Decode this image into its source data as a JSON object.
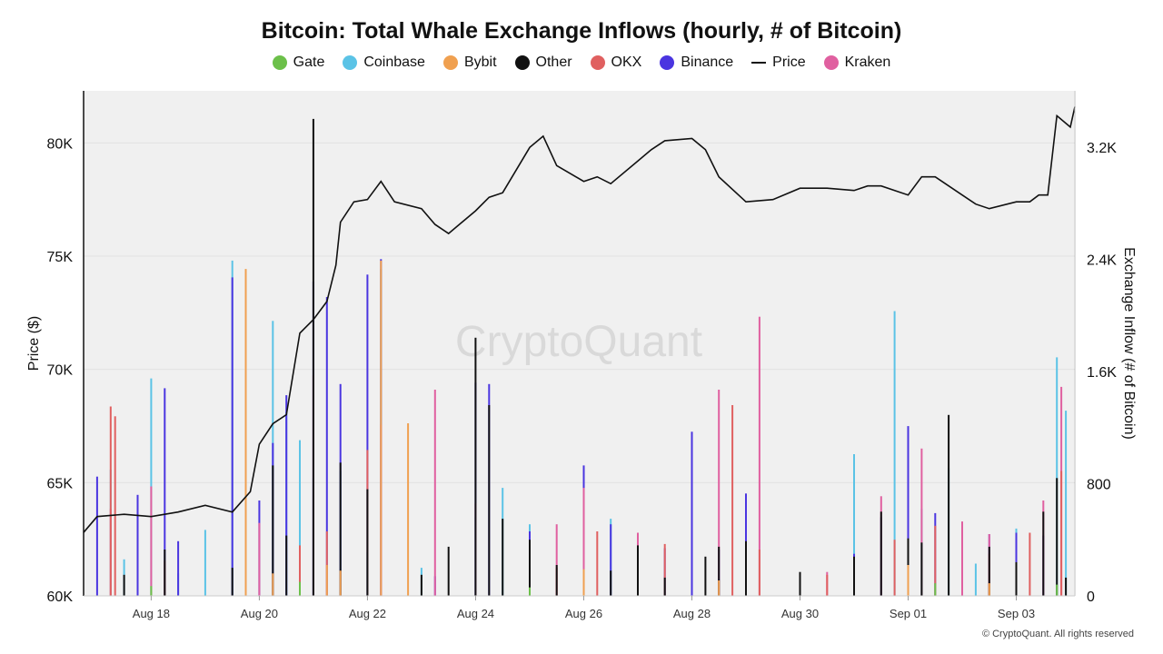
{
  "chart_data": {
    "type": "bar",
    "title": "Bitcoin: Total Whale Exchange Inflows (hourly, # of Bitcoin)",
    "ylabel_left": "Price ($)",
    "ylabel_right": "Exchange Inflow (# of Bitcoin)",
    "watermark": "CryptoQuant",
    "copyright": "© CryptoQuant. All rights reserved",
    "legend": [
      {
        "name": "Gate",
        "color": "#6cc04a",
        "marker": "dot"
      },
      {
        "name": "Coinbase",
        "color": "#5bc3e6",
        "marker": "dot"
      },
      {
        "name": "Bybit",
        "color": "#f0a050",
        "marker": "dot"
      },
      {
        "name": "Other",
        "color": "#111111",
        "marker": "dot"
      },
      {
        "name": "OKX",
        "color": "#e06060",
        "marker": "dot"
      },
      {
        "name": "Binance",
        "color": "#4a35e0",
        "marker": "dot"
      },
      {
        "name": "Price",
        "color": "#111111",
        "marker": "line"
      },
      {
        "name": "Kraken",
        "color": "#e060a0",
        "marker": "dot"
      }
    ],
    "x_ticks": [
      "Aug 18",
      "Aug 20",
      "Aug 22",
      "Aug 24",
      "Aug 26",
      "Aug 28",
      "Aug 30",
      "Sep 01",
      "Sep 03"
    ],
    "x_range": [
      "Aug 16 18:00",
      "Sep 04 02:00"
    ],
    "y_left": {
      "ticks": [
        "60K",
        "65K",
        "70K",
        "75K",
        "80K"
      ],
      "lim": [
        60000,
        82300
      ]
    },
    "y_right": {
      "ticks": [
        "0",
        "800",
        "1.6K",
        "2.4K",
        "3.2K"
      ],
      "lim": [
        0,
        3600
      ]
    },
    "grid": true,
    "price_series": {
      "name": "Price",
      "x": [
        "Aug 16 18:00",
        "Aug 17 00:00",
        "Aug 17 12:00",
        "Aug 18 00:00",
        "Aug 18 12:00",
        "Aug 19 00:00",
        "Aug 19 12:00",
        "Aug 19 20:00",
        "Aug 20 00:00",
        "Aug 20 06:00",
        "Aug 20 12:00",
        "Aug 20 18:00",
        "Aug 21 00:00",
        "Aug 21 06:00",
        "Aug 21 10:00",
        "Aug 21 12:00",
        "Aug 21 18:00",
        "Aug 22 00:00",
        "Aug 22 06:00",
        "Aug 22 12:00",
        "Aug 23 00:00",
        "Aug 23 06:00",
        "Aug 23 12:00",
        "Aug 24 00:00",
        "Aug 24 06:00",
        "Aug 24 12:00",
        "Aug 25 00:00",
        "Aug 25 06:00",
        "Aug 25 12:00",
        "Aug 26 00:00",
        "Aug 26 06:00",
        "Aug 26 12:00",
        "Aug 27 00:00",
        "Aug 27 06:00",
        "Aug 27 12:00",
        "Aug 28 00:00",
        "Aug 28 06:00",
        "Aug 28 12:00",
        "Aug 29 00:00",
        "Aug 29 12:00",
        "Aug 30 00:00",
        "Aug 30 12:00",
        "Aug 31 00:00",
        "Aug 31 06:00",
        "Aug 31 12:00",
        "Sep 01 00:00",
        "Sep 01 06:00",
        "Sep 01 12:00",
        "Sep 02 00:00",
        "Sep 02 06:00",
        "Sep 02 12:00",
        "Sep 03 00:00",
        "Sep 03 06:00",
        "Sep 03 10:00",
        "Sep 03 14:00",
        "Sep 03 18:00",
        "Sep 04 00:00",
        "Sep 04 02:00"
      ],
      "y": [
        62800,
        63500,
        63600,
        63500,
        63700,
        64000,
        63700,
        64600,
        66700,
        67600,
        68000,
        71600,
        72200,
        73000,
        74600,
        76500,
        77400,
        77500,
        78300,
        77400,
        77100,
        76400,
        76000,
        77000,
        77600,
        77800,
        79800,
        80300,
        79000,
        78300,
        78500,
        78200,
        79200,
        79700,
        80100,
        80200,
        79700,
        78500,
        77400,
        77500,
        78000,
        78000,
        77900,
        78100,
        78100,
        77700,
        78500,
        78500,
        77700,
        77300,
        77100,
        77400,
        77400,
        77700,
        77700,
        81200,
        80700,
        81600
      ]
    },
    "series": [
      {
        "name": "Coinbase",
        "x": [
          "Aug 17 06:00",
          "Aug 17 12:00",
          "Aug 18 00:00",
          "Aug 18 12:00",
          "Aug 19 00:00",
          "Aug 19 12:00",
          "Aug 19 18:00",
          "Aug 20 06:00",
          "Aug 20 12:00",
          "Aug 20 18:00",
          "Aug 21 00:00",
          "Aug 21 12:00",
          "Aug 22 00:00",
          "Aug 22 06:00",
          "Aug 23 00:00",
          "Aug 24 00:00",
          "Aug 24 12:00",
          "Aug 25 00:00",
          "Aug 26 00:00",
          "Aug 26 12:00",
          "Aug 27 00:00",
          "Aug 28 00:00",
          "Aug 28 12:00",
          "Aug 29 00:00",
          "Aug 30 00:00",
          "Aug 31 00:00",
          "Aug 31 18:00",
          "Sep 01 06:00",
          "Sep 01 18:00",
          "Sep 02 06:00",
          "Sep 03 00:00",
          "Sep 03 18:00",
          "Sep 03 22:00"
        ],
        "y": [
          900,
          260,
          1550,
          160,
          470,
          2390,
          1130,
          1960,
          1310,
          1110,
          840,
          890,
          310,
          2330,
          200,
          560,
          770,
          510,
          170,
          550,
          250,
          360,
          120,
          580,
          70,
          1010,
          2030,
          620,
          910,
          230,
          480,
          1700,
          1320
        ]
      },
      {
        "name": "Binance",
        "x": [
          "Aug 17 00:00",
          "Aug 17 18:00",
          "Aug 18 06:00",
          "Aug 18 12:00",
          "Aug 19 12:00",
          "Aug 20 00:00",
          "Aug 20 06:00",
          "Aug 20 12:00",
          "Aug 21 00:00",
          "Aug 21 06:00",
          "Aug 21 12:00",
          "Aug 22 00:00",
          "Aug 22 06:00",
          "Aug 23 06:00",
          "Aug 24 00:00",
          "Aug 24 06:00",
          "Aug 25 00:00",
          "Aug 26 00:00",
          "Aug 26 12:00",
          "Aug 27 00:00",
          "Aug 27 12:00",
          "Aug 28 00:00",
          "Aug 28 12:00",
          "Aug 29 00:00",
          "Aug 30 00:00",
          "Aug 31 00:00",
          "Aug 31 12:00",
          "Sep 01 00:00",
          "Sep 01 12:00",
          "Sep 02 00:00",
          "Sep 02 12:00",
          "Sep 03 00:00",
          "Sep 03 12:00"
        ],
        "y": [
          850,
          720,
          1480,
          390,
          2270,
          680,
          1090,
          1430,
          2240,
          2130,
          1510,
          2290,
          2400,
          140,
          1520,
          1510,
          460,
          930,
          510,
          290,
          340,
          1170,
          330,
          730,
          60,
          300,
          560,
          1210,
          590,
          300,
          440,
          450,
          430
        ]
      },
      {
        "name": "Kraken",
        "x": [
          "Aug 17 06:00",
          "Aug 18 00:00",
          "Aug 20 00:00",
          "Aug 21 00:00",
          "Aug 22 06:00",
          "Aug 23 06:00",
          "Aug 24 00:00",
          "Aug 25 12:00",
          "Aug 26 00:00",
          "Aug 27 00:00",
          "Aug 28 12:00",
          "Aug 29 06:00",
          "Aug 30 12:00",
          "Aug 31 12:00",
          "Sep 01 06:00",
          "Sep 02 00:00",
          "Sep 02 12:00",
          "Sep 03 12:00",
          "Sep 03 20:00"
        ],
        "y": [
          620,
          780,
          520,
          1570,
          1220,
          1470,
          660,
          510,
          770,
          450,
          1470,
          1990,
          170,
          710,
          1050,
          530,
          440,
          680,
          1490
        ]
      },
      {
        "name": "OKX",
        "x": [
          "Aug 17 06:00",
          "Aug 17 08:00",
          "Aug 18 06:00",
          "Aug 19 18:00",
          "Aug 20 18:00",
          "Aug 21 06:00",
          "Aug 22 00:00",
          "Aug 25 12:00",
          "Aug 26 06:00",
          "Aug 27 12:00",
          "Aug 28 18:00",
          "Aug 29 06:00",
          "Aug 30 12:00",
          "Aug 31 18:00",
          "Sep 01 12:00",
          "Sep 02 12:00",
          "Sep 03 06:00",
          "Sep 03 20:00"
        ],
        "y": [
          1350,
          1280,
          250,
          640,
          360,
          460,
          1040,
          200,
          460,
          370,
          1360,
          330,
          150,
          400,
          500,
          300,
          450,
          890
        ]
      },
      {
        "name": "Other",
        "x": [
          "Aug 17 12:00",
          "Aug 18 06:00",
          "Aug 19 12:00",
          "Aug 19 18:00",
          "Aug 20 06:00",
          "Aug 20 12:00",
          "Aug 21 00:00",
          "Aug 21 12:00",
          "Aug 22 00:00",
          "Aug 23 00:00",
          "Aug 23 12:00",
          "Aug 24 00:00",
          "Aug 24 06:00",
          "Aug 24 12:00",
          "Aug 25 00:00",
          "Aug 25 12:00",
          "Aug 26 12:00",
          "Aug 27 00:00",
          "Aug 27 12:00",
          "Aug 28 06:00",
          "Aug 28 12:00",
          "Aug 29 00:00",
          "Aug 30 00:00",
          "Aug 31 00:00",
          "Aug 31 12:00",
          "Sep 01 00:00",
          "Sep 01 06:00",
          "Sep 01 18:00",
          "Sep 02 12:00",
          "Sep 03 00:00",
          "Sep 03 12:00",
          "Sep 03 18:00",
          "Sep 03 22:00"
        ],
        "y": [
          150,
          330,
          200,
          1330,
          930,
          430,
          3400,
          950,
          760,
          150,
          350,
          1840,
          1360,
          550,
          400,
          220,
          180,
          360,
          130,
          280,
          350,
          390,
          170,
          280,
          600,
          410,
          380,
          1290,
          350,
          240,
          600,
          840,
          130
        ]
      },
      {
        "name": "Bybit",
        "x": [
          "Aug 19 18:00",
          "Aug 20 06:00",
          "Aug 21 06:00",
          "Aug 21 12:00",
          "Aug 22 06:00",
          "Aug 22 18:00",
          "Aug 26 00:00",
          "Aug 28 12:00",
          "Sep 01 00:00",
          "Sep 02 12:00"
        ],
        "y": [
          2330,
          160,
          220,
          180,
          2390,
          1230,
          190,
          110,
          220,
          90
        ]
      },
      {
        "name": "Gate",
        "x": [
          "Aug 18 00:00",
          "Aug 20 18:00",
          "Aug 25 00:00",
          "Sep 01 12:00",
          "Sep 03 18:00"
        ],
        "y": [
          70,
          100,
          60,
          90,
          80
        ]
      }
    ]
  }
}
